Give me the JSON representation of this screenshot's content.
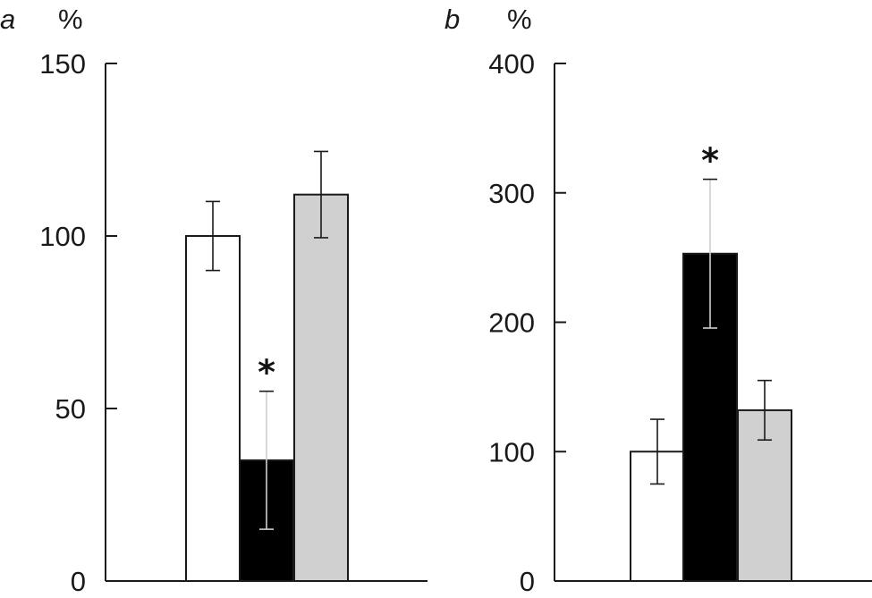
{
  "chart_data": [
    {
      "type": "bar",
      "panel_label": "a",
      "ylabel": "%",
      "ylim": [
        0,
        150
      ],
      "yticks": [
        "0",
        "50",
        "100",
        "150"
      ],
      "grid": false,
      "categories": [
        "",
        "",
        ""
      ],
      "values": [
        100,
        35,
        112
      ],
      "errors": [
        10,
        20,
        12.5
      ],
      "colors": [
        "#ffffff",
        "#000000",
        "#d0d0d0"
      ],
      "annotations": [
        "",
        "*",
        ""
      ]
    },
    {
      "type": "bar",
      "panel_label": "b",
      "ylabel": "%",
      "ylim": [
        0,
        400
      ],
      "yticks": [
        "0",
        "100",
        "200",
        "300",
        "400"
      ],
      "grid": false,
      "categories": [
        "",
        "",
        ""
      ],
      "values": [
        100,
        253,
        132
      ],
      "errors": [
        25,
        57.5,
        23
      ],
      "colors": [
        "#ffffff",
        "#000000",
        "#d0d0d0"
      ],
      "annotations": [
        "",
        "*",
        ""
      ]
    }
  ]
}
